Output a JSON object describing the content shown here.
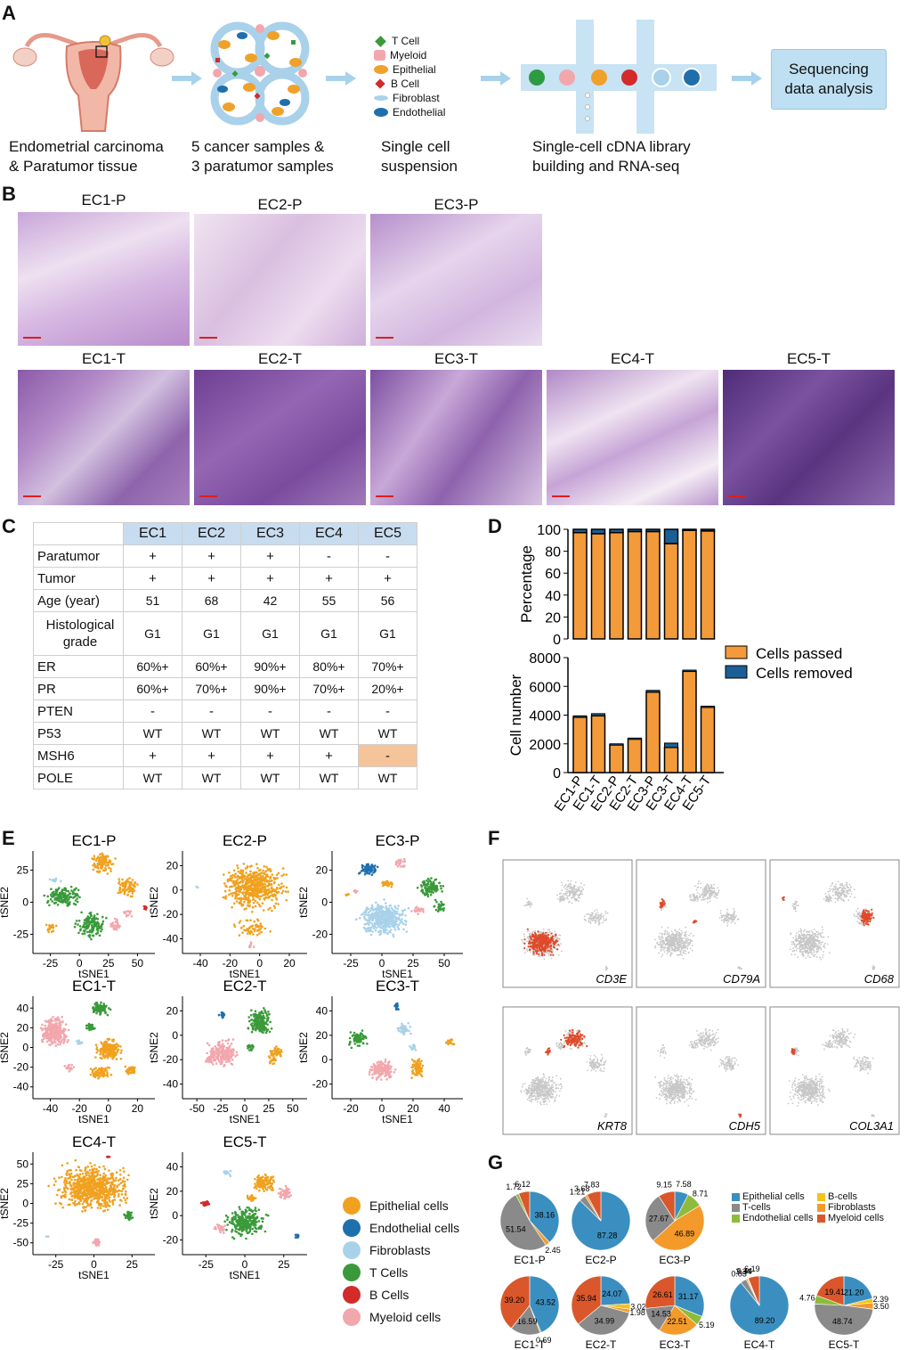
{
  "panels": {
    "a": "A",
    "b": "B",
    "c": "C",
    "d": "D",
    "e": "E",
    "f": "F",
    "g": "G"
  },
  "panelA": {
    "step1": [
      "Endometrial carcinoma",
      "& Paratumor tissue"
    ],
    "step2": [
      "5 cancer samples &",
      "3 paratumor samples"
    ],
    "step3": [
      "Single cell",
      "suspension"
    ],
    "step4": [
      "Single-cell cDNA library",
      "building and RNA-seq"
    ],
    "box": [
      "Sequencing",
      "data analysis"
    ],
    "legend": [
      {
        "label": "T Cell",
        "color": "#3a9a3a"
      },
      {
        "label": "Myeloid",
        "color": "#f2a7ad"
      },
      {
        "label": "Epithelial",
        "color": "#f0a12a"
      },
      {
        "label": "B Cell",
        "color": "#d32a2a"
      },
      {
        "label": "Fibroblast",
        "color": "#a9d3ea"
      },
      {
        "label": "Endothelial",
        "color": "#1f6fad"
      }
    ]
  },
  "panelB": {
    "top": [
      "EC1-P",
      "EC2-P",
      "EC3-P"
    ],
    "bottom": [
      "EC1-T",
      "EC2-T",
      "EC3-T",
      "EC4-T",
      "EC5-T"
    ]
  },
  "panelC": {
    "header": [
      "EC1",
      "EC2",
      "EC3",
      "EC4",
      "EC5"
    ],
    "rows": [
      {
        "label": "Paratumor",
        "vals": [
          "+",
          "+",
          "+",
          "-",
          "-"
        ]
      },
      {
        "label": "Tumor",
        "vals": [
          "+",
          "+",
          "+",
          "+",
          "+"
        ]
      },
      {
        "label": "Age (year)",
        "vals": [
          "51",
          "68",
          "42",
          "55",
          "56"
        ]
      },
      {
        "label": "Histological grade",
        "vals": [
          "G1",
          "G1",
          "G1",
          "G1",
          "G1"
        ]
      },
      {
        "label": "ER",
        "vals": [
          "60%+",
          "60%+",
          "90%+",
          "80%+",
          "70%+"
        ]
      },
      {
        "label": "PR",
        "vals": [
          "60%+",
          "70%+",
          "90%+",
          "70%+",
          "20%+"
        ]
      },
      {
        "label": "PTEN",
        "vals": [
          "-",
          "-",
          "-",
          "-",
          "-"
        ]
      },
      {
        "label": "P53",
        "vals": [
          "WT",
          "WT",
          "WT",
          "WT",
          "WT"
        ]
      },
      {
        "label": "MSH6",
        "vals": [
          "+",
          "+",
          "+",
          "+",
          "-"
        ]
      },
      {
        "label": "POLE",
        "vals": [
          "WT",
          "WT",
          "WT",
          "WT",
          "WT"
        ]
      }
    ]
  },
  "chart_data": [
    {
      "type": "bar",
      "title": "",
      "ylabel": "Percentage",
      "categories": [
        "EC1-P",
        "EC1-T",
        "EC2-P",
        "EC2-T",
        "EC3-P",
        "EC3-T",
        "EC4-T",
        "EC5-T"
      ],
      "ylim": [
        0,
        100
      ],
      "yticks": [
        "0",
        "20",
        "40",
        "60",
        "80",
        "100"
      ],
      "series": [
        {
          "name": "Cells passed",
          "values": [
            97,
            96,
            97,
            98,
            98,
            87,
            99,
            98.5
          ],
          "color": "#f39a3a"
        },
        {
          "name": "Cells removed",
          "values": [
            3,
            4,
            3,
            2,
            2,
            13,
            1,
            1.5
          ],
          "color": "#1b5f96"
        }
      ]
    },
    {
      "type": "bar",
      "ylabel": "Cell number",
      "categories": [
        "EC1-P",
        "EC1-T",
        "EC2-P",
        "EC2-T",
        "EC3-P",
        "EC3-T",
        "EC4-T",
        "EC5-T"
      ],
      "ylim": [
        0,
        8000
      ],
      "yticks": [
        "0",
        "2000",
        "4000",
        "6000",
        "8000"
      ],
      "series": [
        {
          "name": "Cells passed",
          "values": [
            3850,
            3950,
            1950,
            2350,
            5600,
            1750,
            7050,
            4550
          ]
        },
        {
          "name": "Cells removed",
          "values": [
            100,
            150,
            50,
            50,
            120,
            300,
            80,
            70
          ]
        }
      ],
      "legend": [
        "Cells passed",
        "Cells removed"
      ]
    }
  ],
  "panelE": {
    "plots": [
      {
        "title": "EC1-P",
        "xticks": [
          "-25",
          "0",
          "25",
          "50"
        ],
        "yticks": [
          "25",
          "0",
          "-25"
        ]
      },
      {
        "title": "EC2-P",
        "xticks": [
          "-40",
          "-20",
          "0",
          "20"
        ],
        "yticks": [
          "20",
          "0",
          "-20",
          "-40"
        ]
      },
      {
        "title": "EC3-P",
        "xticks": [
          "-25",
          "0",
          "25",
          "50"
        ],
        "yticks": [
          "20",
          "0",
          "-20"
        ]
      },
      {
        "title": "EC1-T",
        "xticks": [
          "-40",
          "-20",
          "0",
          "20"
        ],
        "yticks": [
          "40",
          "20",
          "0",
          "-20",
          "-40"
        ]
      },
      {
        "title": "EC2-T",
        "xticks": [
          "-50",
          "-25",
          "0",
          "25",
          "50"
        ],
        "yticks": [
          "20",
          "0",
          "-20",
          "-40"
        ]
      },
      {
        "title": "EC3-T",
        "xticks": [
          "-20",
          "0",
          "20",
          "40"
        ],
        "yticks": [
          "40",
          "20",
          "0",
          "-20"
        ]
      },
      {
        "title": "EC4-T",
        "xticks": [
          "-25",
          "0",
          "25"
        ],
        "yticks": [
          "50",
          "25",
          "0",
          "-25",
          "-50"
        ]
      },
      {
        "title": "EC5-T",
        "xticks": [
          "-25",
          "0",
          "25"
        ],
        "yticks": [
          "40",
          "20",
          "0",
          "-20"
        ]
      }
    ],
    "xlabel": "tSNE1",
    "ylabel": "tSNE2",
    "legend": [
      {
        "label": "Epithelial cells",
        "color": "#f0a11f"
      },
      {
        "label": "Endothelial cells",
        "color": "#1f6fad"
      },
      {
        "label": "Fibroblasts",
        "color": "#a9d1ea"
      },
      {
        "label": "T Cells",
        "color": "#3a9a3a"
      },
      {
        "label": "B Cells",
        "color": "#d32a2a"
      },
      {
        "label": "Myeloid cells",
        "color": "#f2a7ad"
      }
    ]
  },
  "panelF": {
    "genes": [
      "CD3E",
      "CD79A",
      "CD68",
      "KRT8",
      "CDH5",
      "COL3A1"
    ]
  },
  "panelG": {
    "legend": [
      {
        "label": "Epithelial cells",
        "color": "#3b8fc0"
      },
      {
        "label": "B-cells",
        "color": "#f5c21b"
      },
      {
        "label": "T-cells",
        "color": "#8a8a8a"
      },
      {
        "label": "Fibroblasts",
        "color": "#f39a2b"
      },
      {
        "label": "Endothelial cells",
        "color": "#8fbb3a"
      },
      {
        "label": "Myeloid cells",
        "color": "#d9572a"
      }
    ],
    "pies": [
      {
        "name": "EC1-P",
        "vals": {
          "epi": 38.16,
          "fib": 2.45,
          "t": 51.54,
          "end": 1.72,
          "mye": 6.12
        },
        "labels": [
          "38.16",
          "2.45",
          "51.54",
          "1.72",
          "6.12"
        ]
      },
      {
        "name": "EC2-P",
        "vals": {
          "epi": 87.28,
          "t": 3.68,
          "fib": 1.21,
          "mye": 7.83
        },
        "labels": [
          "87.28",
          "1.21",
          "3.68",
          "7.83"
        ]
      },
      {
        "name": "EC3-P",
        "vals": {
          "epi": 7.58,
          "end": 8.71,
          "fib": 46.89,
          "t": 27.67,
          "mye": 9.15
        },
        "labels": [
          "7.58",
          "8.71",
          "46.89",
          "27.67",
          "9.15"
        ]
      },
      {
        "name": "EC1-T",
        "vals": {
          "epi": 43.52,
          "end": 0.69,
          "t": 16.59,
          "mye": 39.2
        },
        "labels": [
          "43.52",
          "0.69",
          "16.59",
          "39.20"
        ]
      },
      {
        "name": "EC2-T",
        "vals": {
          "epi": 24.07,
          "b": 3.02,
          "fib": 1.98,
          "t": 34.99,
          "mye": 35.94
        },
        "labels": [
          "24.07",
          "3.02",
          "1.98",
          "34.99",
          "35.94"
        ]
      },
      {
        "name": "EC3-T",
        "vals": {
          "epi": 31.17,
          "end": 5.19,
          "fib": 22.51,
          "t": 14.53,
          "mye": 26.61
        },
        "labels": [
          "31.17",
          "5.19",
          "22.51",
          "14.53",
          "26.61"
        ]
      },
      {
        "name": "EC4-T",
        "vals": {
          "epi": 89.2,
          "t": 3.34,
          "fib": 0.83,
          "b": 0.44,
          "mye": 6.19
        },
        "labels": [
          "89.20",
          "0.83",
          "3.34",
          "0.44",
          "6.19"
        ]
      },
      {
        "name": "EC5-T",
        "vals": {
          "epi": 21.2,
          "b": 2.39,
          "fib": 3.5,
          "t": 48.74,
          "end": 4.76,
          "mye": 19.41
        },
        "labels": [
          "21.20",
          "2.39",
          "3.50",
          "48.74",
          "4.76",
          "19.41"
        ]
      }
    ]
  }
}
